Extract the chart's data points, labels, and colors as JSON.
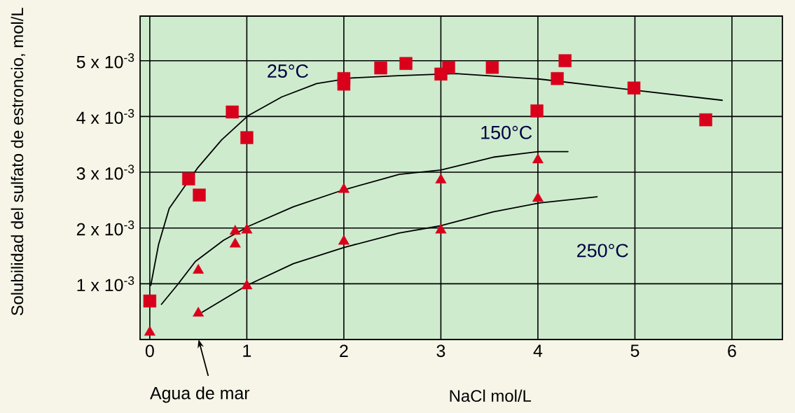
{
  "chart_data": {
    "type": "scatter",
    "xlabel": "NaCl mol/L",
    "ylabel": "Solubilidad del sulfato de estroncio, mol/L",
    "xlim": [
      -0.1,
      6.52
    ],
    "ylim": [
      0,
      0.0058
    ],
    "xticks": [
      0,
      1,
      2,
      3,
      4,
      5,
      6
    ],
    "yticks": [
      {
        "value": 0.001,
        "label": "1 x 10$^{-3}$"
      },
      {
        "value": 0.002,
        "label": "2 x 10$^{-3}$"
      },
      {
        "value": 0.003,
        "label": "3 x 10$^{-3}$"
      },
      {
        "value": 0.004,
        "label": "4 x 10$^{-3}$"
      },
      {
        "value": 0.005,
        "label": "5 x 10$^{-3}$"
      }
    ],
    "grid": true,
    "series": [
      {
        "name": "25°C",
        "type": "line",
        "color": "#000000",
        "marker": "none",
        "x": [
          0.01,
          0.09,
          0.2,
          0.49,
          0.74,
          1.01,
          1.36,
          1.72,
          2.08,
          2.56,
          3.15,
          4.02,
          4.86,
          5.9
        ],
        "values": [
          0.00097,
          0.0017,
          0.00235,
          0.00307,
          0.00358,
          0.00401,
          0.00435,
          0.00459,
          0.00469,
          0.00473,
          0.00477,
          0.00467,
          0.0045,
          0.00429
        ]
      },
      {
        "name": "150°C",
        "type": "line",
        "color": "#000000",
        "marker": "none",
        "x": [
          0.12,
          0.28,
          0.47,
          0.76,
          1.03,
          1.48,
          1.99,
          2.57,
          3.0,
          3.54,
          4.01,
          4.31
        ],
        "values": [
          0.00063,
          0.00097,
          0.0014,
          0.00178,
          0.00204,
          0.00238,
          0.00268,
          0.00296,
          0.00304,
          0.00327,
          0.00337,
          0.00337
        ]
      },
      {
        "name": "250°C",
        "type": "line",
        "color": "#000000",
        "marker": "none",
        "x": [
          0.54,
          1.0,
          1.48,
          2.0,
          2.57,
          3.0,
          3.54,
          4.02,
          4.61
        ],
        "values": [
          0.00049,
          0.00097,
          0.00136,
          0.00165,
          0.00191,
          0.00204,
          0.00229,
          0.00245,
          0.00256
        ]
      },
      {
        "color": "#d9001b",
        "marker": "square",
        "x": [
          0,
          0.4,
          0.51,
          0.85,
          1.0,
          2.0,
          2.0,
          2.38,
          2.64,
          3.0,
          3.08,
          3.53,
          3.99,
          4.2,
          4.28,
          4.99,
          5.73
        ],
        "values": [
          0.00069,
          0.00288,
          0.00259,
          0.00408,
          0.00362,
          0.00468,
          0.00458,
          0.00487,
          0.00495,
          0.00476,
          0.00488,
          0.00488,
          0.0041,
          0.00468,
          0.005,
          0.00451,
          0.00394
        ]
      },
      {
        "color": "#d9001b",
        "marker": "triangle",
        "x": [
          0,
          0.5,
          0.5,
          0.88,
          0.88,
          1.0,
          2.0,
          3.0,
          4.0
        ],
        "values": [
          0.00013,
          0.00047,
          0.00124,
          0.00194,
          0.00171,
          0.00196,
          0.00269,
          0.00286,
          0.00322
        ]
      },
      {
        "color": "#d9001b",
        "marker": "triangle",
        "x": [
          1.0,
          2.0,
          3.0,
          4.0
        ],
        "values": [
          0.00096,
          0.00176,
          0.00196,
          0.00253
        ]
      }
    ],
    "annotations": [
      "Agua de mar"
    ]
  }
}
